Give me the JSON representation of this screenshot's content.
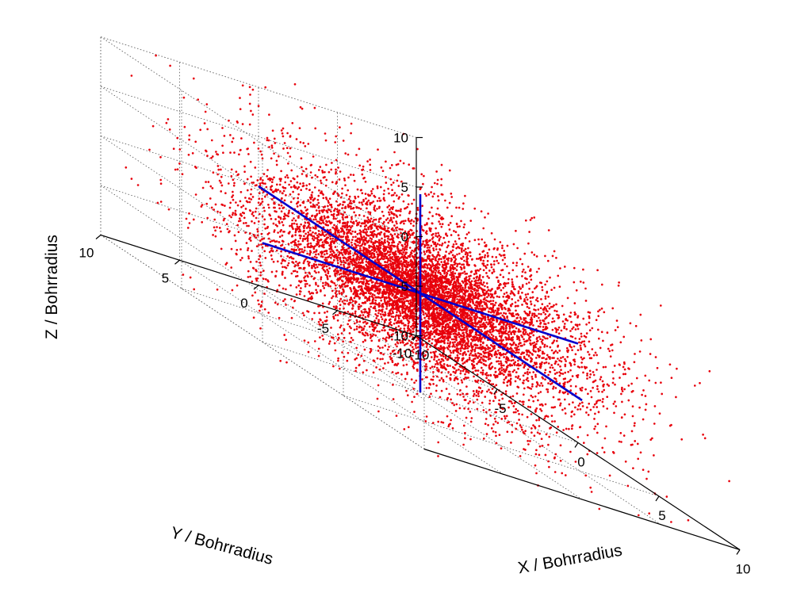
{
  "chart_data": {
    "type": "scatter",
    "dimensions": 3,
    "title": "",
    "xlabel": "X / Bohrradius",
    "ylabel": "Y / Bohrradius",
    "zlabel": "Z / Bohrradius",
    "xlim": [
      -10,
      10
    ],
    "ylim": [
      -10,
      10
    ],
    "zlim": [
      -10,
      10
    ],
    "x_ticks": [
      "-10",
      "-5",
      "0",
      "5",
      "10"
    ],
    "y_ticks": [
      "10",
      "5",
      "0",
      "-5",
      "-10"
    ],
    "z_ticks": [
      "10",
      "5",
      "0",
      "-5",
      "-10"
    ],
    "grid": true,
    "point_color": "#e8000b",
    "reference_axes_color": "#0000cc",
    "point_distribution": {
      "description_source": "dense radially-symmetric cloud of points centred at origin",
      "count": 9000,
      "center": [
        0,
        0,
        0
      ],
      "radial_scale": 3.2
    },
    "reference_axes": [
      {
        "from": [
          -10,
          0,
          0
        ],
        "to": [
          10,
          0,
          0
        ]
      },
      {
        "from": [
          0,
          -10,
          0
        ],
        "to": [
          0,
          10,
          0
        ]
      },
      {
        "from": [
          0,
          0,
          -10
        ],
        "to": [
          0,
          0,
          10
        ]
      }
    ]
  }
}
